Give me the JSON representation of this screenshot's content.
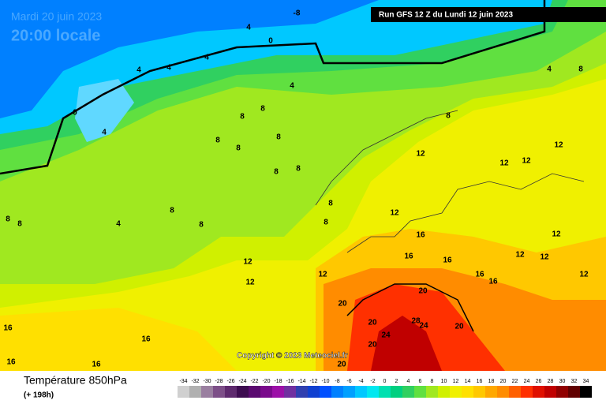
{
  "header": {
    "date": "Mardi 20 juin 2023",
    "time": "20:00 locale",
    "run": "Run GFS 12 Z du Lundi 12 juin 2023"
  },
  "map": {
    "copyright": "Copyright © 2023 Meteociel.fr",
    "labels": [
      -8,
      4,
      0,
      4,
      4,
      4,
      4,
      0,
      4,
      8,
      8,
      8,
      8,
      8,
      8,
      8,
      8,
      4,
      8,
      8,
      8,
      8,
      8,
      12,
      12,
      12,
      12,
      12,
      16,
      16,
      16,
      16,
      16,
      12,
      12,
      12,
      12,
      12,
      12,
      20,
      20,
      28,
      24,
      20,
      20,
      24,
      20,
      16,
      16,
      16,
      16,
      20,
      4,
      8,
      8,
      12
    ]
  },
  "footer": {
    "title": "Température 850hPa",
    "lead": "(+ 198h)"
  },
  "legend": {
    "items": [
      {
        "value": -34,
        "color": "#d0d0d0"
      },
      {
        "value": -32,
        "color": "#b0b0b0"
      },
      {
        "value": -30,
        "color": "#9a7fa0"
      },
      {
        "value": -28,
        "color": "#7d4f88"
      },
      {
        "value": -26,
        "color": "#5e2a6e"
      },
      {
        "value": -24,
        "color": "#3d0c50"
      },
      {
        "value": -22,
        "color": "#5a0a70"
      },
      {
        "value": -20,
        "color": "#7a0a8c"
      },
      {
        "value": -18,
        "color": "#9c10a8"
      },
      {
        "value": -16,
        "color": "#7030a0"
      },
      {
        "value": -14,
        "color": "#3040b0"
      },
      {
        "value": -12,
        "color": "#1040d0"
      },
      {
        "value": -10,
        "color": "#0050ff"
      },
      {
        "value": -8,
        "color": "#0080ff"
      },
      {
        "value": -6,
        "color": "#00a0ff"
      },
      {
        "value": -4,
        "color": "#00c8ff"
      },
      {
        "value": -2,
        "color": "#00e8f0"
      },
      {
        "value": 0,
        "color": "#00e0b0"
      },
      {
        "value": 2,
        "color": "#00d080"
      },
      {
        "value": 4,
        "color": "#30d060"
      },
      {
        "value": 6,
        "color": "#60e040"
      },
      {
        "value": 8,
        "color": "#a0e820"
      },
      {
        "value": 10,
        "color": "#d0f000"
      },
      {
        "value": 12,
        "color": "#f0f000"
      },
      {
        "value": 14,
        "color": "#ffe000"
      },
      {
        "value": 16,
        "color": "#ffc800"
      },
      {
        "value": 18,
        "color": "#ffa800"
      },
      {
        "value": 20,
        "color": "#ff8c00"
      },
      {
        "value": 22,
        "color": "#ff6000"
      },
      {
        "value": 24,
        "color": "#ff3000"
      },
      {
        "value": 26,
        "color": "#e01000"
      },
      {
        "value": 28,
        "color": "#c00000"
      },
      {
        "value": 30,
        "color": "#900000"
      },
      {
        "value": 32,
        "color": "#600000"
      },
      {
        "value": 34,
        "color": "#000000"
      }
    ]
  }
}
